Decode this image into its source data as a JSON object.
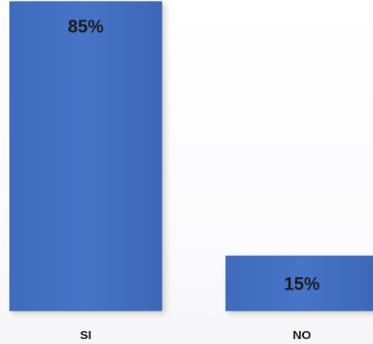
{
  "chart_data": {
    "type": "bar",
    "categories": [
      "SI",
      "NO"
    ],
    "values": [
      85,
      15
    ],
    "data_labels": [
      "85%",
      "15%"
    ],
    "ylim": [
      0,
      100
    ],
    "grid": false,
    "bar_color": "#4472c4",
    "bar_color_edge": "#3a62ad"
  }
}
